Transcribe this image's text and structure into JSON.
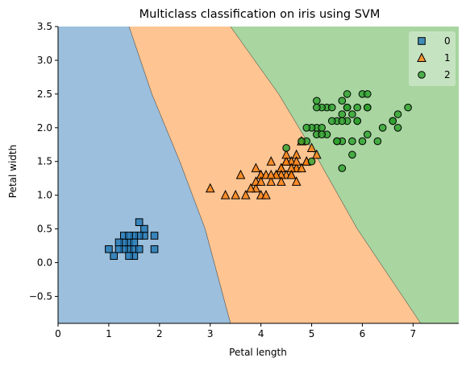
{
  "chart_data": {
    "type": "scatter",
    "title": "Multiclass classification on iris using SVM",
    "xlabel": "Petal length",
    "ylabel": "Petal width",
    "xlim": [
      0,
      7.9
    ],
    "ylim": [
      -0.9,
      3.5
    ],
    "xticks": [
      0,
      1,
      2,
      3,
      4,
      5,
      6,
      7
    ],
    "yticks": [
      -0.5,
      0.0,
      0.5,
      1.0,
      1.5,
      2.0,
      2.5,
      3.0,
      3.5
    ],
    "xtick_labels": [
      "0",
      "1",
      "2",
      "3",
      "4",
      "5",
      "6",
      "7"
    ],
    "ytick_labels": [
      "−0.5",
      "0.0",
      "0.5",
      "1.0",
      "1.5",
      "2.0",
      "2.5",
      "3.0",
      "3.5"
    ],
    "grid": false,
    "legend_position": "top-right",
    "decision_regions": [
      {
        "class": "0",
        "color": "#9bbfdc"
      },
      {
        "class": "1",
        "color": "#fec491"
      },
      {
        "class": "2",
        "color": "#a8d5a0"
      }
    ],
    "boundaries": [
      {
        "between": [
          "0",
          "1"
        ],
        "points": [
          [
            1.4,
            3.5
          ],
          [
            1.85,
            2.5
          ],
          [
            2.4,
            1.5
          ],
          [
            2.9,
            0.5
          ],
          [
            3.4,
            -0.9
          ]
        ]
      },
      {
        "between": [
          "1",
          "2"
        ],
        "points": [
          [
            3.4,
            3.5
          ],
          [
            4.35,
            2.5
          ],
          [
            5.15,
            1.5
          ],
          [
            5.9,
            0.5
          ],
          [
            7.15,
            -0.9
          ]
        ]
      }
    ],
    "series": [
      {
        "name": "0",
        "marker": "square",
        "color": "#1f77b4",
        "points": [
          [
            1.4,
            0.2
          ],
          [
            1.3,
            0.2
          ],
          [
            1.5,
            0.2
          ],
          [
            1.7,
            0.4
          ],
          [
            1.4,
            0.3
          ],
          [
            1.5,
            0.1
          ],
          [
            1.6,
            0.2
          ],
          [
            1.1,
            0.1
          ],
          [
            1.2,
            0.2
          ],
          [
            1.0,
            0.2
          ],
          [
            1.7,
            0.5
          ],
          [
            1.9,
            0.2
          ],
          [
            1.6,
            0.4
          ],
          [
            1.5,
            0.4
          ],
          [
            1.3,
            0.3
          ],
          [
            1.6,
            0.6
          ],
          [
            1.9,
            0.4
          ],
          [
            1.4,
            0.1
          ],
          [
            1.3,
            0.4
          ],
          [
            1.2,
            0.3
          ],
          [
            1.5,
            0.3
          ],
          [
            1.4,
            0.4
          ]
        ]
      },
      {
        "name": "1",
        "marker": "triangle",
        "color": "#ff7f0e",
        "points": [
          [
            4.7,
            1.4
          ],
          [
            4.5,
            1.5
          ],
          [
            4.9,
            1.5
          ],
          [
            4.0,
            1.3
          ],
          [
            4.6,
            1.5
          ],
          [
            4.5,
            1.3
          ],
          [
            4.7,
            1.6
          ],
          [
            3.3,
            1.0
          ],
          [
            4.6,
            1.3
          ],
          [
            3.9,
            1.4
          ],
          [
            3.5,
            1.0
          ],
          [
            4.2,
            1.5
          ],
          [
            4.0,
            1.0
          ],
          [
            4.7,
            1.4
          ],
          [
            3.6,
            1.3
          ],
          [
            4.4,
            1.4
          ],
          [
            4.1,
            1.0
          ],
          [
            4.5,
            1.5
          ],
          [
            3.9,
            1.1
          ],
          [
            4.8,
            1.8
          ],
          [
            4.0,
            1.3
          ],
          [
            4.9,
            1.5
          ],
          [
            4.7,
            1.2
          ],
          [
            4.3,
            1.3
          ],
          [
            4.4,
            1.4
          ],
          [
            4.8,
            1.4
          ],
          [
            5.0,
            1.7
          ],
          [
            3.8,
            1.1
          ],
          [
            3.7,
            1.0
          ],
          [
            3.9,
            1.2
          ],
          [
            5.1,
            1.6
          ],
          [
            4.5,
            1.6
          ],
          [
            4.7,
            1.5
          ],
          [
            4.4,
            1.3
          ],
          [
            4.1,
            1.3
          ],
          [
            4.4,
            1.2
          ],
          [
            4.6,
            1.4
          ],
          [
            4.2,
            1.2
          ],
          [
            3.0,
            1.1
          ],
          [
            4.3,
            1.3
          ],
          [
            4.0,
            1.2
          ],
          [
            4.2,
            1.3
          ],
          [
            4.6,
            1.3
          ]
        ]
      },
      {
        "name": "2",
        "marker": "circle",
        "color": "#2ca02c",
        "points": [
          [
            6.0,
            2.5
          ],
          [
            5.1,
            1.9
          ],
          [
            5.9,
            2.1
          ],
          [
            5.6,
            1.8
          ],
          [
            5.8,
            2.2
          ],
          [
            6.6,
            2.1
          ],
          [
            4.5,
            1.7
          ],
          [
            6.3,
            1.8
          ],
          [
            5.8,
            1.8
          ],
          [
            6.1,
            2.5
          ],
          [
            5.1,
            2.0
          ],
          [
            5.3,
            1.9
          ],
          [
            5.5,
            2.1
          ],
          [
            5.0,
            2.0
          ],
          [
            5.1,
            2.4
          ],
          [
            5.3,
            2.3
          ],
          [
            5.5,
            1.8
          ],
          [
            6.7,
            2.2
          ],
          [
            6.9,
            2.3
          ],
          [
            5.0,
            1.5
          ],
          [
            5.7,
            2.3
          ],
          [
            4.9,
            2.0
          ],
          [
            6.7,
            2.0
          ],
          [
            4.9,
            1.8
          ],
          [
            5.7,
            2.1
          ],
          [
            6.0,
            1.8
          ],
          [
            4.8,
            1.8
          ],
          [
            5.6,
            2.1
          ],
          [
            5.8,
            1.6
          ],
          [
            6.1,
            1.9
          ],
          [
            6.4,
            2.0
          ],
          [
            5.6,
            2.2
          ],
          [
            5.6,
            1.4
          ],
          [
            6.1,
            2.3
          ],
          [
            5.6,
            2.4
          ],
          [
            5.5,
            1.8
          ],
          [
            5.4,
            2.1
          ],
          [
            5.2,
            2.3
          ],
          [
            5.1,
            2.3
          ],
          [
            5.9,
            2.3
          ],
          [
            5.7,
            2.5
          ],
          [
            5.2,
            2.0
          ],
          [
            5.4,
            2.3
          ],
          [
            6.1,
            2.3
          ],
          [
            5.2,
            1.9
          ],
          [
            5.9,
            2.1
          ],
          [
            5.7,
            2.3
          ],
          [
            6.6,
            2.1
          ]
        ]
      }
    ]
  }
}
